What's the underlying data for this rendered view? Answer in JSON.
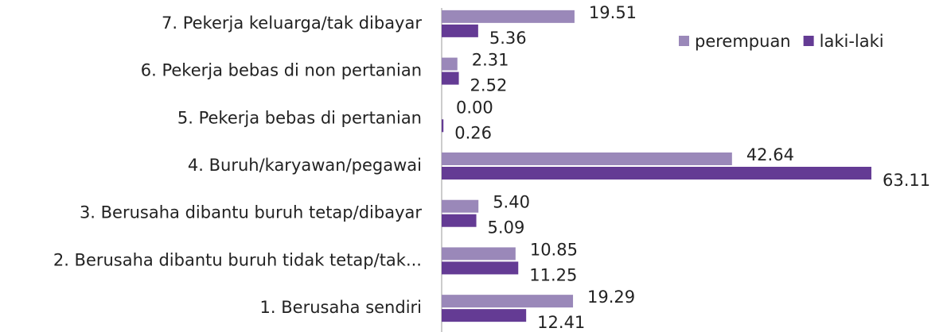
{
  "chart_data": {
    "type": "hbar",
    "categories": [
      "1. Berusaha sendiri",
      "2. Berusaha dibantu buruh tidak tetap/tak...",
      "3. Berusaha dibantu buruh tetap/dibayar",
      "4. Buruh/karyawan/pegawai",
      "5. Pekerja bebas di pertanian",
      "6. Pekerja bebas di non pertanian",
      "7. Pekerja keluarga/tak dibayar"
    ],
    "series": [
      {
        "name": "perempuan",
        "color": "#9a88b9",
        "values": [
          19.29,
          10.85,
          5.4,
          42.64,
          0,
          2.31,
          19.51
        ],
        "value_labels": [
          "19.29",
          "10.85",
          "5.40",
          "42.64",
          "0.00",
          "2.31",
          "19.51"
        ]
      },
      {
        "name": "laki-laki",
        "color": "#643b94",
        "values": [
          12.41,
          11.25,
          5.09,
          63.11,
          0.26,
          2.52,
          5.36
        ],
        "value_labels": [
          "12.41",
          "11.25",
          "5.09",
          "63.11",
          "0.26",
          "2.52",
          "5.36"
        ]
      }
    ],
    "xlim": [
      0,
      70
    ],
    "legend": "upper right"
  }
}
